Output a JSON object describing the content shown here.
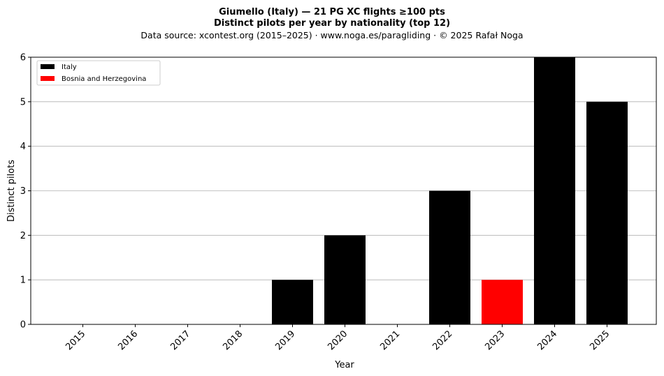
{
  "chart_data": {
    "type": "bar",
    "title_line1": "Giumello (Italy)  —  21 PG XC flights ≥100 pts",
    "title_line2": "Distinct pilots per year by nationality (top 12)",
    "subtitle": "Data source: xcontest.org (2015–2025)  ·  www.noga.es/paragliding  ·  © 2025 Rafał Noga",
    "xlabel": "Year",
    "ylabel": "Distinct pilots",
    "ylim": [
      0,
      6
    ],
    "yticks": [
      "0",
      "1",
      "2",
      "3",
      "4",
      "5",
      "6"
    ],
    "grid": "horizontal",
    "legend_position": "top-left",
    "categories": [
      "2015",
      "2016",
      "2017",
      "2018",
      "2019",
      "2020",
      "2021",
      "2022",
      "2023",
      "2024",
      "2025"
    ],
    "series": [
      {
        "name": "Italy",
        "color": "#000000",
        "values": [
          0,
          0,
          0,
          0,
          1,
          2,
          0,
          3,
          0,
          6,
          5
        ]
      },
      {
        "name": "Bosnia and Herzegovina",
        "color": "#ff0000",
        "values": [
          0,
          0,
          0,
          0,
          0,
          0,
          0,
          0,
          1,
          0,
          0
        ]
      }
    ]
  }
}
